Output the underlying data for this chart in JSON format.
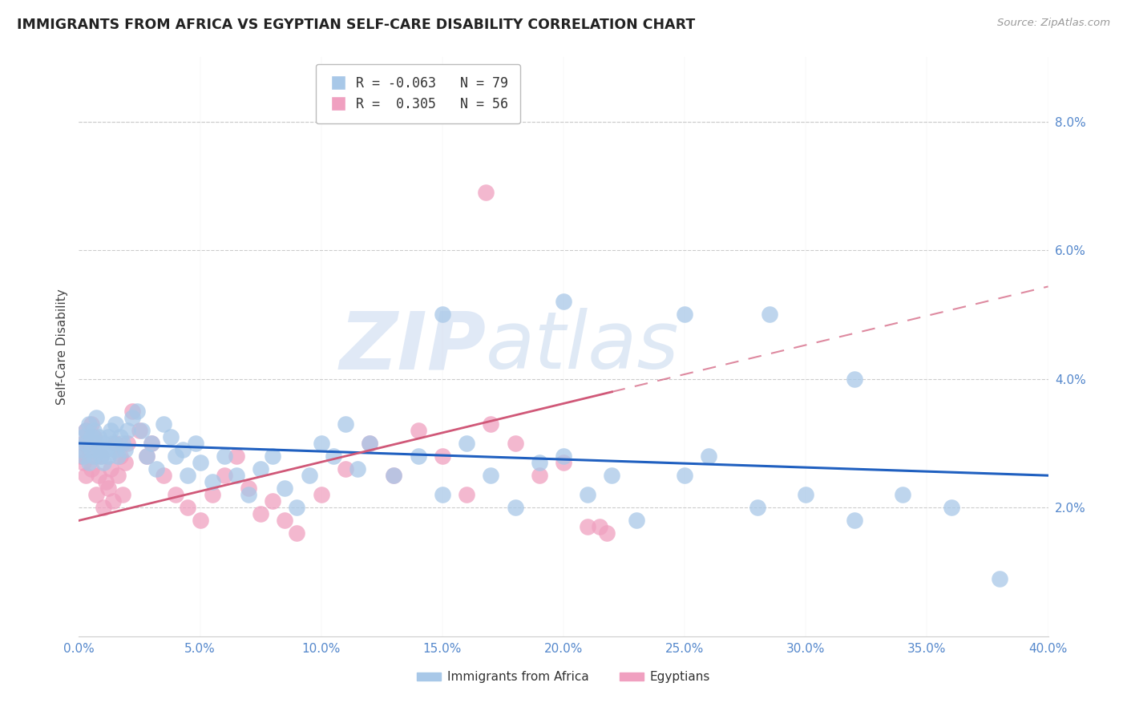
{
  "title": "IMMIGRANTS FROM AFRICA VS EGYPTIAN SELF-CARE DISABILITY CORRELATION CHART",
  "source": "Source: ZipAtlas.com",
  "ylabel": "Self-Care Disability",
  "legend_label1": "Immigrants from Africa",
  "legend_label2": "Egyptians",
  "R1": -0.063,
  "N1": 79,
  "R2": 0.305,
  "N2": 56,
  "color1": "#a8c8e8",
  "color2": "#f0a0c0",
  "line_color1": "#2060c0",
  "line_color2": "#d05878",
  "xlim": [
    0.0,
    0.4
  ],
  "ylim": [
    0.0,
    0.09
  ],
  "xticks": [
    0.0,
    0.05,
    0.1,
    0.15,
    0.2,
    0.25,
    0.3,
    0.35,
    0.4
  ],
  "yticks_right": [
    0.02,
    0.04,
    0.06,
    0.08
  ],
  "background_color": "#ffffff",
  "watermark_zip": "ZIP",
  "watermark_atlas": "atlas",
  "axis_color": "#5588cc",
  "grid_color": "#cccccc",
  "blue_line_start_y": 0.03,
  "blue_line_end_y": 0.025,
  "pink_line_start_y": 0.02,
  "pink_line_end_y": 0.035,
  "pink_line_end_x": 0.22
}
